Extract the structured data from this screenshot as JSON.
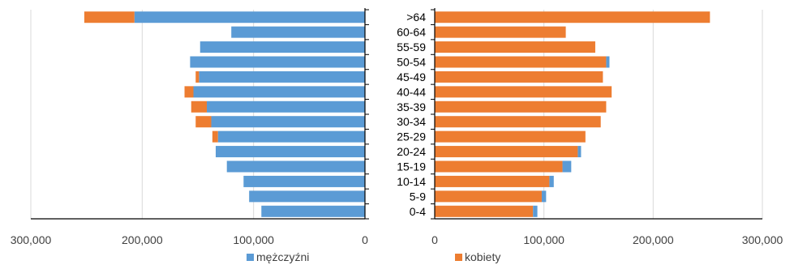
{
  "chart_data": {
    "type": "bar",
    "subtype": "population-pyramid",
    "categories": [
      "0-4",
      "5-9",
      "10-14",
      "15-19",
      "20-24",
      "25-29",
      "30-34",
      "35-39",
      "40-44",
      "45-49",
      "50-54",
      "55-59",
      "60-64",
      ">64"
    ],
    "left_panel": {
      "xlim": [
        0,
        300000
      ],
      "direction": "reversed",
      "ticks": [
        300000,
        200000,
        100000,
        0
      ],
      "tick_labels": [
        "300,000",
        "200,000",
        "100,000",
        "0"
      ],
      "series": [
        {
          "name": "mężczyźni",
          "color": "#5B9BD5",
          "values": [
            93000,
            104000,
            109000,
            124000,
            134000,
            132000,
            138000,
            142000,
            154000,
            149000,
            157000,
            148000,
            120000,
            207000
          ]
        },
        {
          "color": "#ED7D31",
          "values": [
            0,
            0,
            0,
            0,
            0,
            5000,
            14000,
            14000,
            8000,
            3000,
            0,
            0,
            0,
            45000
          ]
        }
      ]
    },
    "right_panel": {
      "xlim": [
        0,
        300000
      ],
      "direction": "normal",
      "ticks": [
        0,
        100000,
        200000,
        300000
      ],
      "tick_labels": [
        "0",
        "100,000",
        "200,000",
        "300,000"
      ],
      "series": [
        {
          "name": "kobiety",
          "color": "#ED7D31",
          "values": [
            90000,
            98000,
            105000,
            117000,
            131000,
            138000,
            152000,
            157000,
            162000,
            154000,
            157000,
            147000,
            120000,
            252000
          ]
        },
        {
          "color": "#5B9BD5",
          "values": [
            4000,
            4000,
            4000,
            8000,
            3000,
            0,
            0,
            0,
            0,
            0,
            3000,
            0,
            0,
            0
          ]
        }
      ]
    },
    "grid": true,
    "legend": [
      {
        "label": "mężczyźni",
        "color": "#5B9BD5"
      },
      {
        "label": "kobiety",
        "color": "#ED7D31"
      }
    ]
  }
}
